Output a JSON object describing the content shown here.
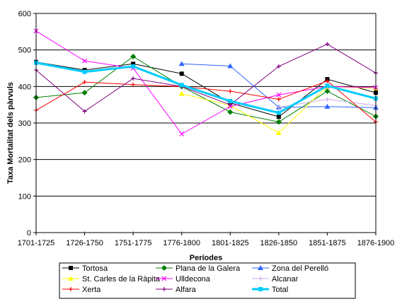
{
  "chart_data": {
    "type": "line",
    "xlabel": "Períodes",
    "ylabel": "Taxa Mortalitat dels pàrvuls",
    "ylim": [
      0,
      600
    ],
    "yticks": [
      0,
      100,
      200,
      300,
      400,
      500,
      600
    ],
    "grid": "horizontal",
    "legend_position": "bottom",
    "categories": [
      "1701-1725",
      "1726-1750",
      "1751-1775",
      "1776-1800",
      "1801-1825",
      "1826-1850",
      "1851-1875",
      "1876-1900"
    ],
    "series": [
      {
        "name": "Tortosa",
        "color": "#000000",
        "marker": "square",
        "values": [
          467,
          445,
          462,
          435,
          355,
          317,
          420,
          383
        ]
      },
      {
        "name": "Plana de la Galera",
        "color": "#008000",
        "marker": "diamond",
        "values": [
          370,
          383,
          482,
          400,
          330,
          303,
          387,
          318
        ]
      },
      {
        "name": "Zona del Perelló",
        "color": "#3366ff",
        "marker": "triangle",
        "values": [
          null,
          null,
          null,
          462,
          456,
          343,
          345,
          342
        ]
      },
      {
        "name": "St. Carles de la Ràpita",
        "color": "#ffff00",
        "marker": "triangle",
        "values": [
          null,
          null,
          null,
          380,
          348,
          273,
          400,
          395
        ]
      },
      {
        "name": "Ulldecona",
        "color": "#ff00ff",
        "marker": "x",
        "values": [
          552,
          470,
          450,
          270,
          345,
          377,
          400,
          397
        ]
      },
      {
        "name": "Alcanar",
        "color": "#ccaaee",
        "marker": "plus",
        "values": [
          null,
          null,
          null,
          null,
          null,
          343,
          365,
          348
        ]
      },
      {
        "name": "Xerta",
        "color": "#ff0000",
        "marker": "plus",
        "values": [
          335,
          412,
          405,
          400,
          387,
          365,
          415,
          303
        ]
      },
      {
        "name": "Alfara",
        "color": "#800080",
        "marker": "plus",
        "values": [
          445,
          332,
          422,
          400,
          350,
          455,
          516,
          437
        ]
      },
      {
        "name": "Total",
        "color": "#00ccff",
        "marker": "square",
        "values": [
          465,
          440,
          455,
          404,
          360,
          328,
          402,
          367
        ]
      }
    ]
  }
}
